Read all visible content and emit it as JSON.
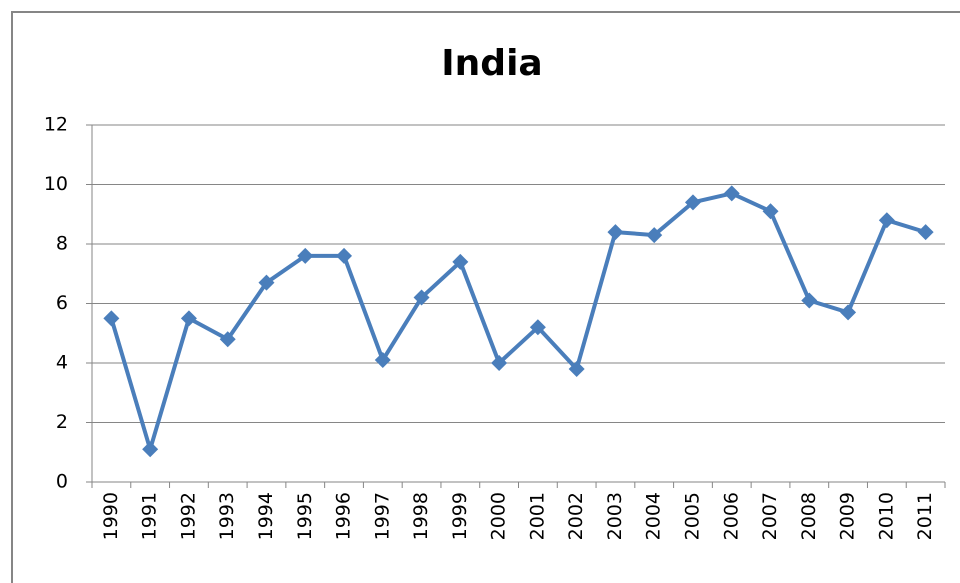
{
  "chart_data": {
    "type": "line",
    "title": "India",
    "categories": [
      "1990",
      "1991",
      "1992",
      "1993",
      "1994",
      "1995",
      "1996",
      "1997",
      "1998",
      "1999",
      "2000",
      "2001",
      "2002",
      "2003",
      "2004",
      "2005",
      "2006",
      "2007",
      "2008",
      "2009",
      "2010",
      "2011"
    ],
    "series": [
      {
        "name": "India",
        "color": "#4a7ebb",
        "values": [
          5.5,
          1.1,
          5.5,
          4.8,
          6.7,
          7.6,
          7.6,
          4.1,
          6.2,
          7.4,
          4.0,
          5.2,
          3.8,
          8.4,
          8.3,
          9.4,
          9.7,
          9.1,
          6.1,
          5.7,
          8.8,
          8.4
        ]
      }
    ],
    "ylim": [
      0,
      12
    ],
    "yticks": [
      0,
      2,
      4,
      6,
      8,
      10,
      12
    ],
    "grid": true
  }
}
